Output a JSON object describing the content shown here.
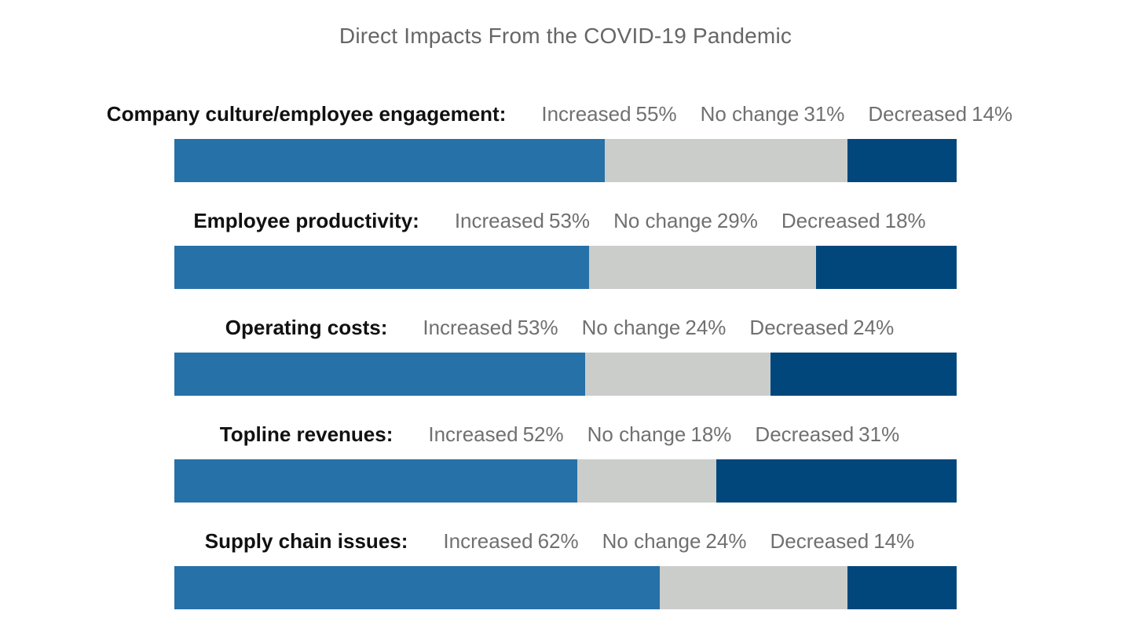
{
  "chart_data": {
    "type": "bar",
    "orientation": "horizontal",
    "stacked": true,
    "title": "Direct Impacts From the COVID-19 Pandemic",
    "categories": [
      "Company culture/employee engagement:",
      "Employee productivity:",
      "Operating costs:",
      "Topline revenues:",
      "Supply chain issues:"
    ],
    "series": [
      {
        "name": "Increased",
        "color": "#2671a8",
        "values": [
          55,
          53,
          53,
          52,
          62
        ]
      },
      {
        "name": "No change",
        "color": "#cbcdca",
        "values": [
          31,
          29,
          24,
          18,
          24
        ]
      },
      {
        "name": "Decreased",
        "color": "#02477c",
        "values": [
          14,
          18,
          24,
          31,
          14
        ]
      }
    ],
    "value_suffix": "%",
    "grid": false
  }
}
